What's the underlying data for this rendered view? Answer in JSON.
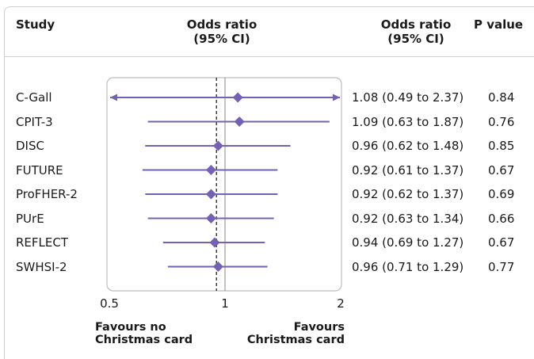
{
  "header": {
    "study": "Study",
    "or_plot_line1": "Odds ratio",
    "or_plot_line2": "(95% CI)",
    "or_text_line1": "Odds ratio",
    "or_text_line2": "(95% CI)",
    "p_value": "P value"
  },
  "colors": {
    "marker": "#7460b5",
    "frame": "#bdbdbd",
    "null_line": "#8a8a8a",
    "text": "#1a1a1a"
  },
  "footer": {
    "left_line1": "Favours no",
    "left_line2": "Christmas card",
    "right_line1": "Favours",
    "right_line2": "Christmas card"
  },
  "chart_data": {
    "type": "forest",
    "x_scale": "log",
    "x_ticks": [
      "0.5",
      "1",
      "2"
    ],
    "xlim": [
      0.5,
      2
    ],
    "null_value": 1,
    "pooled_estimate_reference_line": 0.95,
    "studies": [
      {
        "name": "C-Gall",
        "or": 1.08,
        "lower": 0.49,
        "upper": 2.37,
        "text": "1.08 (0.49 to 2.37)",
        "p": "0.84",
        "arrow_left": true,
        "arrow_right": true
      },
      {
        "name": "CPIT-3",
        "or": 1.09,
        "lower": 0.63,
        "upper": 1.87,
        "text": "1.09 (0.63 to 1.87)",
        "p": "0.76"
      },
      {
        "name": "DISC",
        "or": 0.96,
        "lower": 0.62,
        "upper": 1.48,
        "text": "0.96 (0.62 to 1.48)",
        "p": "0.85"
      },
      {
        "name": "FUTURE",
        "or": 0.92,
        "lower": 0.61,
        "upper": 1.37,
        "text": "0.92 (0.61 to 1.37)",
        "p": "0.67"
      },
      {
        "name": "ProFHER-2",
        "or": 0.92,
        "lower": 0.62,
        "upper": 1.37,
        "text": "0.92 (0.62 to 1.37)",
        "p": "0.69"
      },
      {
        "name": "PUrE",
        "or": 0.92,
        "lower": 0.63,
        "upper": 1.34,
        "text": "0.92 (0.63 to 1.34)",
        "p": "0.66"
      },
      {
        "name": "REFLECT",
        "or": 0.94,
        "lower": 0.69,
        "upper": 1.27,
        "text": "0.94 (0.69 to 1.27)",
        "p": "0.67"
      },
      {
        "name": "SWHSI-2",
        "or": 0.96,
        "lower": 0.71,
        "upper": 1.29,
        "text": "0.96 (0.71 to 1.29)",
        "p": "0.77"
      }
    ]
  }
}
